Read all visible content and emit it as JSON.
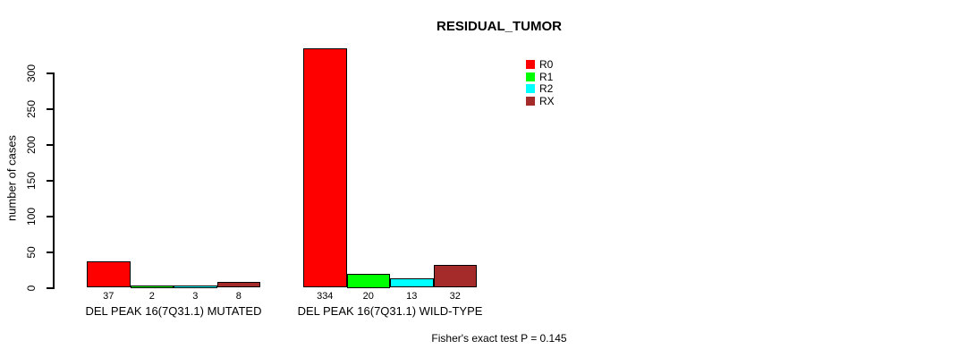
{
  "chart_data": {
    "type": "bar",
    "title": "RESIDUAL_TUMOR",
    "ylabel": "number of cases",
    "xlabel": "",
    "categories": [
      "DEL PEAK 16(7Q31.1) MUTATED",
      "DEL PEAK 16(7Q31.1) WILD-TYPE"
    ],
    "series": [
      {
        "name": "R0",
        "color": "#FF0000",
        "values": [
          37,
          334
        ]
      },
      {
        "name": "R1",
        "color": "#00FF00",
        "values": [
          2,
          20
        ]
      },
      {
        "name": "R2",
        "color": "#00FFFF",
        "values": [
          3,
          13
        ]
      },
      {
        "name": "RX",
        "color": "#A52A2A",
        "values": [
          8,
          32
        ]
      }
    ],
    "bar_value_labels": [
      [
        "37",
        "2",
        "3",
        "8"
      ],
      [
        "334",
        "20",
        "13",
        "32"
      ]
    ],
    "yticks": [
      0,
      50,
      100,
      150,
      200,
      250,
      300
    ],
    "ylim": [
      0,
      340
    ],
    "grid": false,
    "legend_position": "top-right",
    "annotation": "Fisher's exact test P = 0.145"
  }
}
